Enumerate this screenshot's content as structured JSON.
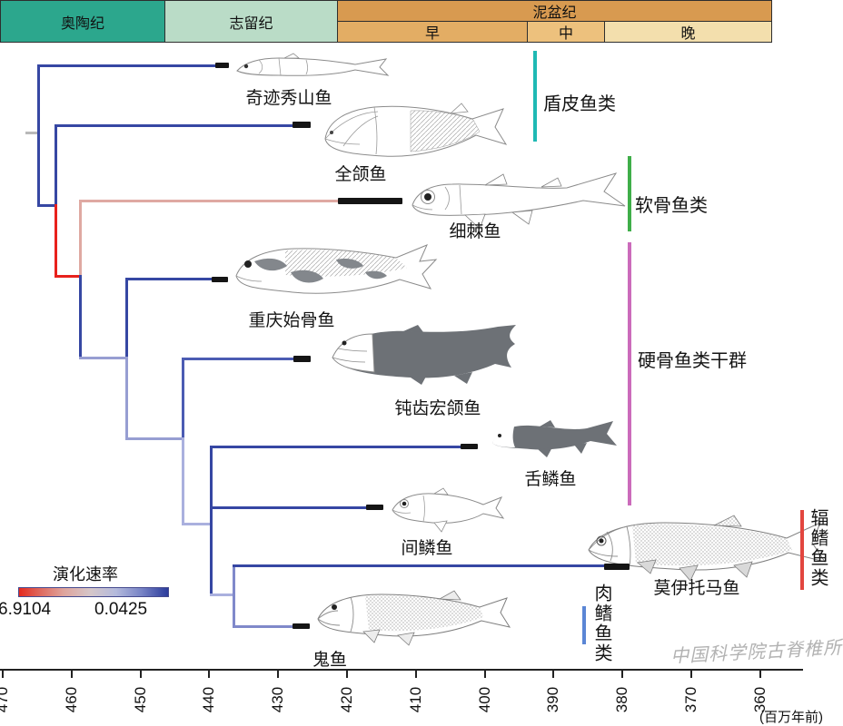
{
  "timeline": {
    "periods": [
      {
        "name": "奥陶纪",
        "color": "#2ca78d"
      },
      {
        "name": "志留纪",
        "color": "#badcc7"
      },
      {
        "name": "泥盆纪",
        "color": "#d89a50",
        "epochs": [
          {
            "name": "早",
            "color": "#e3ad64"
          },
          {
            "name": "中",
            "color": "#edc17d"
          },
          {
            "name": "晚",
            "color": "#f3dfad"
          }
        ]
      }
    ]
  },
  "tree": {
    "tips": [
      {
        "label": "奇迹秀山鱼"
      },
      {
        "label": "全颌鱼"
      },
      {
        "label": "细棘鱼"
      },
      {
        "label": "重庆始骨鱼"
      },
      {
        "label": "钝齿宏颌鱼"
      },
      {
        "label": "舌鳞鱼"
      },
      {
        "label": "间鳞鱼"
      },
      {
        "label": "莫伊托马鱼"
      },
      {
        "label": "鬼鱼"
      }
    ],
    "topology_newick": "(奇迹秀山鱼,(全颌鱼,(细棘鱼,(重庆始骨鱼,(钝齿宏颌鱼,(舌鳞鱼,间鳞鱼,(莫伊托马鱼,鬼鱼)))))));",
    "branch_palette": {
      "high_rate_red": "#e8211c",
      "rosy_pink": "#dfa9a2",
      "dark_blue": "#3647a3",
      "medium_blue": "#4c5cb3",
      "lavender": "#979ed2",
      "light_lavender": "#aab0de",
      "root_gray": "#b9b9b9",
      "tip_bar_black": "#151515"
    }
  },
  "groups": [
    {
      "label": "盾皮鱼类",
      "color": "#1fb9b4"
    },
    {
      "label": "软骨鱼类",
      "color": "#3fae49"
    },
    {
      "label": "硬骨鱼类干群",
      "color": "#cb6bbb"
    },
    {
      "label": "辐鳍鱼类",
      "color": "#e2463f"
    },
    {
      "label": "肉鳍鱼类",
      "color": "#5b86d5"
    }
  ],
  "legend": {
    "title": "演化速率",
    "max_value": "6.9104",
    "min_value": "0.0425"
  },
  "axis": {
    "tick_labels": [
      "470",
      "460",
      "450",
      "440",
      "430",
      "420",
      "410",
      "400",
      "390",
      "380",
      "370",
      "360"
    ],
    "unit_label": "(百万年前)"
  },
  "watermark": "中国科学院古脊椎所"
}
